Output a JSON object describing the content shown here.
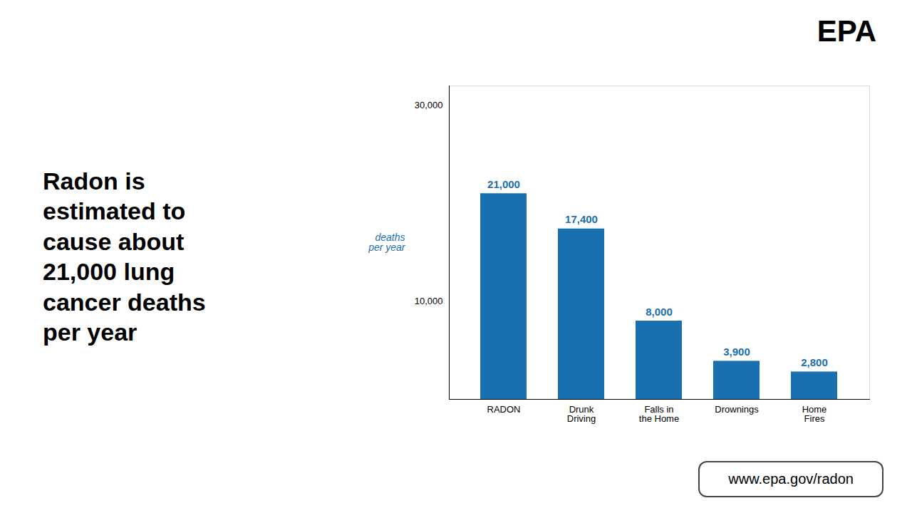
{
  "chart_data": {
    "type": "bar",
    "title": "Radon is\nestimated to\ncause about\n21,000 lung\ncancer deaths\nper year",
    "categories": [
      "RADON",
      "Drunk\nDriving",
      "Falls in\nthe Home",
      "Drownings",
      "Home\nFires"
    ],
    "values": [
      21000,
      17400,
      8000,
      3900,
      2800
    ],
    "value_labels": [
      "21,000",
      "17,400",
      "8,000",
      "3,900",
      "2,800"
    ],
    "data_labels": true,
    "color": "#1a6faf",
    "ylabel": "deaths\nper year",
    "ylim": [
      0,
      32000
    ],
    "yticks": [
      {
        "value": 10000,
        "label": "10,000"
      },
      {
        "value": 30000,
        "label": "30,000"
      }
    ],
    "grid": false,
    "annotations": [
      "EPA",
      "www.epa.gov/radon"
    ]
  }
}
